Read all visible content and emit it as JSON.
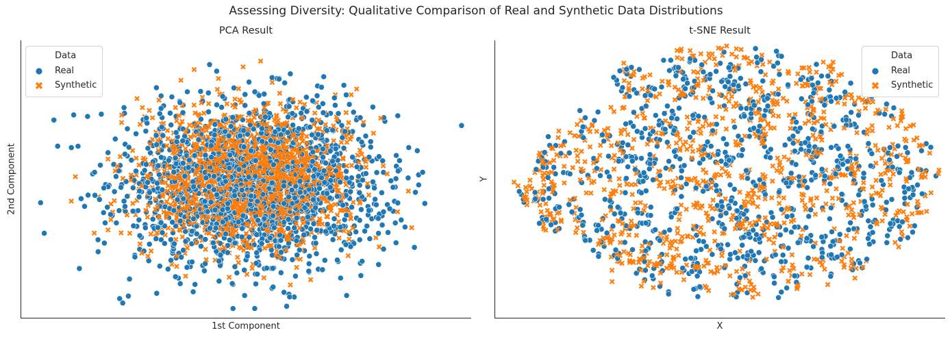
{
  "figure": {
    "suptitle": "Assessing Diversity: Qualitative Comparison of Real and Synthetic Data Distributions"
  },
  "colors": {
    "real": "#1f77b4",
    "synthetic": "#ff7f0e",
    "axis": "#262626"
  },
  "chart_data": [
    {
      "type": "scatter",
      "title": "PCA Result",
      "xlabel": "1st Component",
      "ylabel": "2nd Component",
      "xlim": [
        -6.6,
        6.6
      ],
      "ylim": [
        -4.2,
        4.2
      ],
      "ticks_visible": false,
      "grid": false,
      "legend": {
        "title": "Data",
        "placement": "top-left",
        "entries": [
          "Real",
          "Synthetic"
        ]
      },
      "series": [
        {
          "name": "Real",
          "marker": "circle",
          "center": [
            0.2,
            -0.15
          ],
          "spread": [
            1.95,
            1.25
          ],
          "count": 1800
        },
        {
          "name": "Synthetic",
          "marker": "x",
          "center": [
            0.05,
            0.0
          ],
          "spread": [
            1.5,
            1.05
          ],
          "count": 1800
        }
      ]
    },
    {
      "type": "scatter",
      "title": "t-SNE Result",
      "xlabel": "X",
      "ylabel": "Y",
      "xlim": [
        -65,
        65
      ],
      "ylim": [
        -45,
        45
      ],
      "ticks_visible": false,
      "grid": false,
      "legend": {
        "title": "Data",
        "placement": "top-right",
        "entries": [
          "Real",
          "Synthetic"
        ]
      },
      "series": [
        {
          "name": "Real",
          "marker": "circle",
          "count": 900
        },
        {
          "name": "Synthetic",
          "marker": "x",
          "count": 1000
        }
      ]
    }
  ]
}
